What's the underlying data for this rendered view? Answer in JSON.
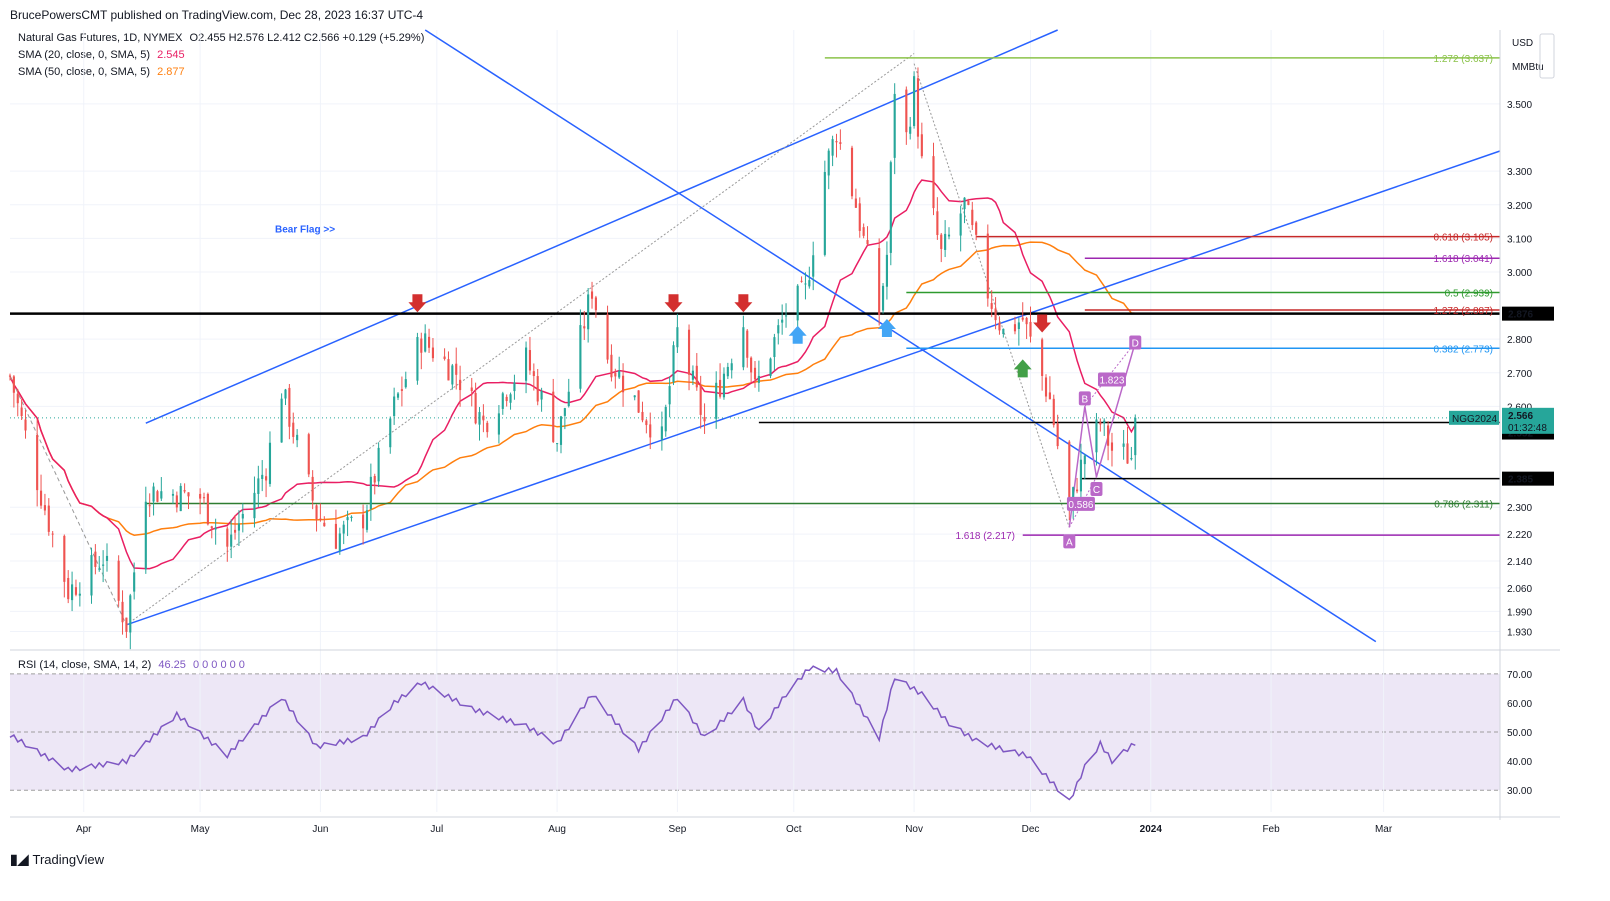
{
  "header": {
    "publisher": "BrucePowersCMT published on TradingView.com, Dec 28, 2023 16:37 UTC-4"
  },
  "legend": {
    "symbol": "Natural Gas Futures, 1D, NYMEX",
    "ohlc": "O2.455  H2.576  L2.412  C2.566  +0.129 (+5.29%)",
    "sma20_label": "SMA (20, close, 0, SMA, 5)",
    "sma20_value": "2.545",
    "sma50_label": "SMA (50, close, 0, SMA, 5)",
    "sma50_value": "2.877",
    "rsi_label": "RSI (14, close, SMA, 14, 2)",
    "rsi_value": "46.25",
    "rsi_extra": "0  0  0  0  0  0"
  },
  "units": {
    "currency": "USD",
    "unit": "MMBtu"
  },
  "price_axis": [
    "3.500",
    "3.300",
    "3.200",
    "3.100",
    "3.000",
    "2.800",
    "2.700",
    "2.600",
    "2.300",
    "2.220",
    "2.140",
    "2.060",
    "1.990",
    "1.930"
  ],
  "rsi_axis": [
    "70.00",
    "60.00",
    "50.00",
    "40.00",
    "30.00"
  ],
  "time_axis": [
    "Apr",
    "May",
    "Jun",
    "Jul",
    "Aug",
    "Sep",
    "Oct",
    "Nov",
    "Dec",
    "2024",
    "Feb",
    "Mar"
  ],
  "price_tags": {
    "level_2876": "2.876",
    "level_2552": "2.552",
    "level_2385": "2.385",
    "symbol_tag": "NGG2024",
    "last_price": "2.566",
    "countdown": "01:32:48"
  },
  "annotations": {
    "bear_flag": "Bear Flag >>",
    "fib_1272_top": "1.272 (3.637)",
    "fib_0618": "0.618 (3.105)",
    "fib_1618_upper": "1.618 (3.041)",
    "fib_05": "0.5 (2.939)",
    "fib_1272_mid": "1.272 (2.887)",
    "fib_0382": "0.382 (2.773)",
    "fib_0786": "0.786 (2.311)",
    "fib_1618_lower": "1.618 (2.217)",
    "ratio_1823": "1.823",
    "ratio_0586": "0.586",
    "wave_a": "A",
    "wave_b": "B",
    "wave_c": "C",
    "wave_d": "D"
  },
  "colors": {
    "up": "#26a69a",
    "down": "#ef5350",
    "sma20": "#e91e63",
    "sma50": "#ff7f0e",
    "trend": "#2962ff",
    "rsi": "#7e57c2",
    "rsi_band": "#ede7f6",
    "fib_top": "#8bc34a",
    "fib_red": "#c62828",
    "fib_magenta": "#9c27b0",
    "fib_green": "#2e9a2e",
    "fib_blue": "#2196f3",
    "fib_darkgreen": "#2e7d32",
    "pattern": "#ba68c8"
  },
  "chart_data": {
    "type": "candlestick",
    "title": "Natural Gas Futures, 1D, NYMEX",
    "xlabel": "",
    "ylabel": "USD / MMBtu",
    "ylim": [
      1.89,
      3.72
    ],
    "x_range": [
      "2023-03-13",
      "2024-03-31"
    ],
    "price_key_points": [
      [
        "2023-03-13",
        2.69
      ],
      [
        "2023-03-20",
        2.38
      ],
      [
        "2023-03-28",
        2.05
      ],
      [
        "2023-04-06",
        2.15
      ],
      [
        "2023-04-12",
        1.95
      ],
      [
        "2023-04-17",
        2.35
      ],
      [
        "2023-05-01",
        2.33
      ],
      [
        "2023-05-08",
        2.18
      ],
      [
        "2023-05-18",
        2.42
      ],
      [
        "2023-05-22",
        2.65
      ],
      [
        "2023-05-31",
        2.28
      ],
      [
        "2023-06-05",
        2.21
      ],
      [
        "2023-06-12",
        2.27
      ],
      [
        "2023-06-20",
        2.6
      ],
      [
        "2023-06-27",
        2.8
      ],
      [
        "2023-07-06",
        2.7
      ],
      [
        "2023-07-13",
        2.55
      ],
      [
        "2023-07-24",
        2.74
      ],
      [
        "2023-08-01",
        2.5
      ],
      [
        "2023-08-10",
        2.95
      ],
      [
        "2023-08-14",
        2.75
      ],
      [
        "2023-08-22",
        2.6
      ],
      [
        "2023-08-28",
        2.5
      ],
      [
        "2023-09-01",
        2.82
      ],
      [
        "2023-09-08",
        2.55
      ],
      [
        "2023-09-18",
        2.85
      ],
      [
        "2023-09-21",
        2.65
      ],
      [
        "2023-09-29",
        2.88
      ],
      [
        "2023-10-04",
        2.94
      ],
      [
        "2023-10-09",
        3.3
      ],
      [
        "2023-10-12",
        3.42
      ],
      [
        "2023-10-17",
        3.2
      ],
      [
        "2023-10-23",
        2.88
      ],
      [
        "2023-10-25",
        3.05
      ],
      [
        "2023-10-27",
        3.55
      ],
      [
        "2023-10-30",
        3.4
      ],
      [
        "2023-11-01",
        3.55
      ],
      [
        "2023-11-03",
        3.32
      ],
      [
        "2023-11-08",
        3.05
      ],
      [
        "2023-11-14",
        3.2
      ],
      [
        "2023-11-20",
        2.94
      ],
      [
        "2023-11-24",
        2.82
      ],
      [
        "2023-11-29",
        2.86
      ],
      [
        "2023-12-06",
        2.62
      ],
      [
        "2023-12-11",
        2.28
      ],
      [
        "2023-12-13",
        2.38
      ],
      [
        "2023-12-15",
        2.46
      ],
      [
        "2023-12-19",
        2.55
      ],
      [
        "2023-12-22",
        2.47
      ],
      [
        "2023-12-27",
        2.45
      ],
      [
        "2023-12-28",
        2.566
      ]
    ],
    "last_candle": {
      "date": "2023-12-28",
      "open": 2.455,
      "high": 2.576,
      "low": 2.412,
      "close": 2.566
    },
    "sma20_last": 2.545,
    "sma50_last": 2.877,
    "rsi_key_points": [
      [
        "2023-03-13",
        49
      ],
      [
        "2023-03-28",
        37
      ],
      [
        "2023-04-12",
        40
      ],
      [
        "2023-04-25",
        56
      ],
      [
        "2023-05-08",
        42
      ],
      [
        "2023-05-22",
        62
      ],
      [
        "2023-05-31",
        45
      ],
      [
        "2023-06-12",
        48
      ],
      [
        "2023-06-20",
        60
      ],
      [
        "2023-06-27",
        67
      ],
      [
        "2023-07-10",
        58
      ],
      [
        "2023-07-24",
        52
      ],
      [
        "2023-08-01",
        46
      ],
      [
        "2023-08-10",
        63
      ],
      [
        "2023-08-22",
        44
      ],
      [
        "2023-09-01",
        62
      ],
      [
        "2023-09-08",
        48
      ],
      [
        "2023-09-18",
        61
      ],
      [
        "2023-09-22",
        50
      ],
      [
        "2023-09-29",
        63
      ],
      [
        "2023-10-05",
        72
      ],
      [
        "2023-10-12",
        71
      ],
      [
        "2023-10-23",
        48
      ],
      [
        "2023-10-27",
        69
      ],
      [
        "2023-11-03",
        63
      ],
      [
        "2023-11-10",
        53
      ],
      [
        "2023-11-17",
        47
      ],
      [
        "2023-11-24",
        44
      ],
      [
        "2023-11-30",
        42
      ],
      [
        "2023-12-07",
        32
      ],
      [
        "2023-12-11",
        26
      ],
      [
        "2023-12-15",
        38
      ],
      [
        "2023-12-19",
        46
      ],
      [
        "2023-12-22",
        40
      ],
      [
        "2023-12-28",
        46.25
      ]
    ],
    "rsi_ylim": [
      22.5,
      76.5
    ],
    "rsi_levels": [
      70,
      50,
      30
    ],
    "horizontal_levels": [
      2.876,
      2.552,
      2.385
    ],
    "fib_levels": [
      {
        "label": "1.272 (3.637)",
        "price": 3.637
      },
      {
        "label": "0.618 (3.105)",
        "price": 3.105
      },
      {
        "label": "1.618 (3.041)",
        "price": 3.041
      },
      {
        "label": "0.5 (2.939)",
        "price": 2.939
      },
      {
        "label": "1.272 (2.887)",
        "price": 2.887
      },
      {
        "label": "0.382 (2.773)",
        "price": 2.773
      },
      {
        "label": "0.786 (2.311)",
        "price": 2.311
      },
      {
        "label": "1.618 (2.217)",
        "price": 2.217
      }
    ],
    "grid": true,
    "legend_position": "top-left"
  }
}
